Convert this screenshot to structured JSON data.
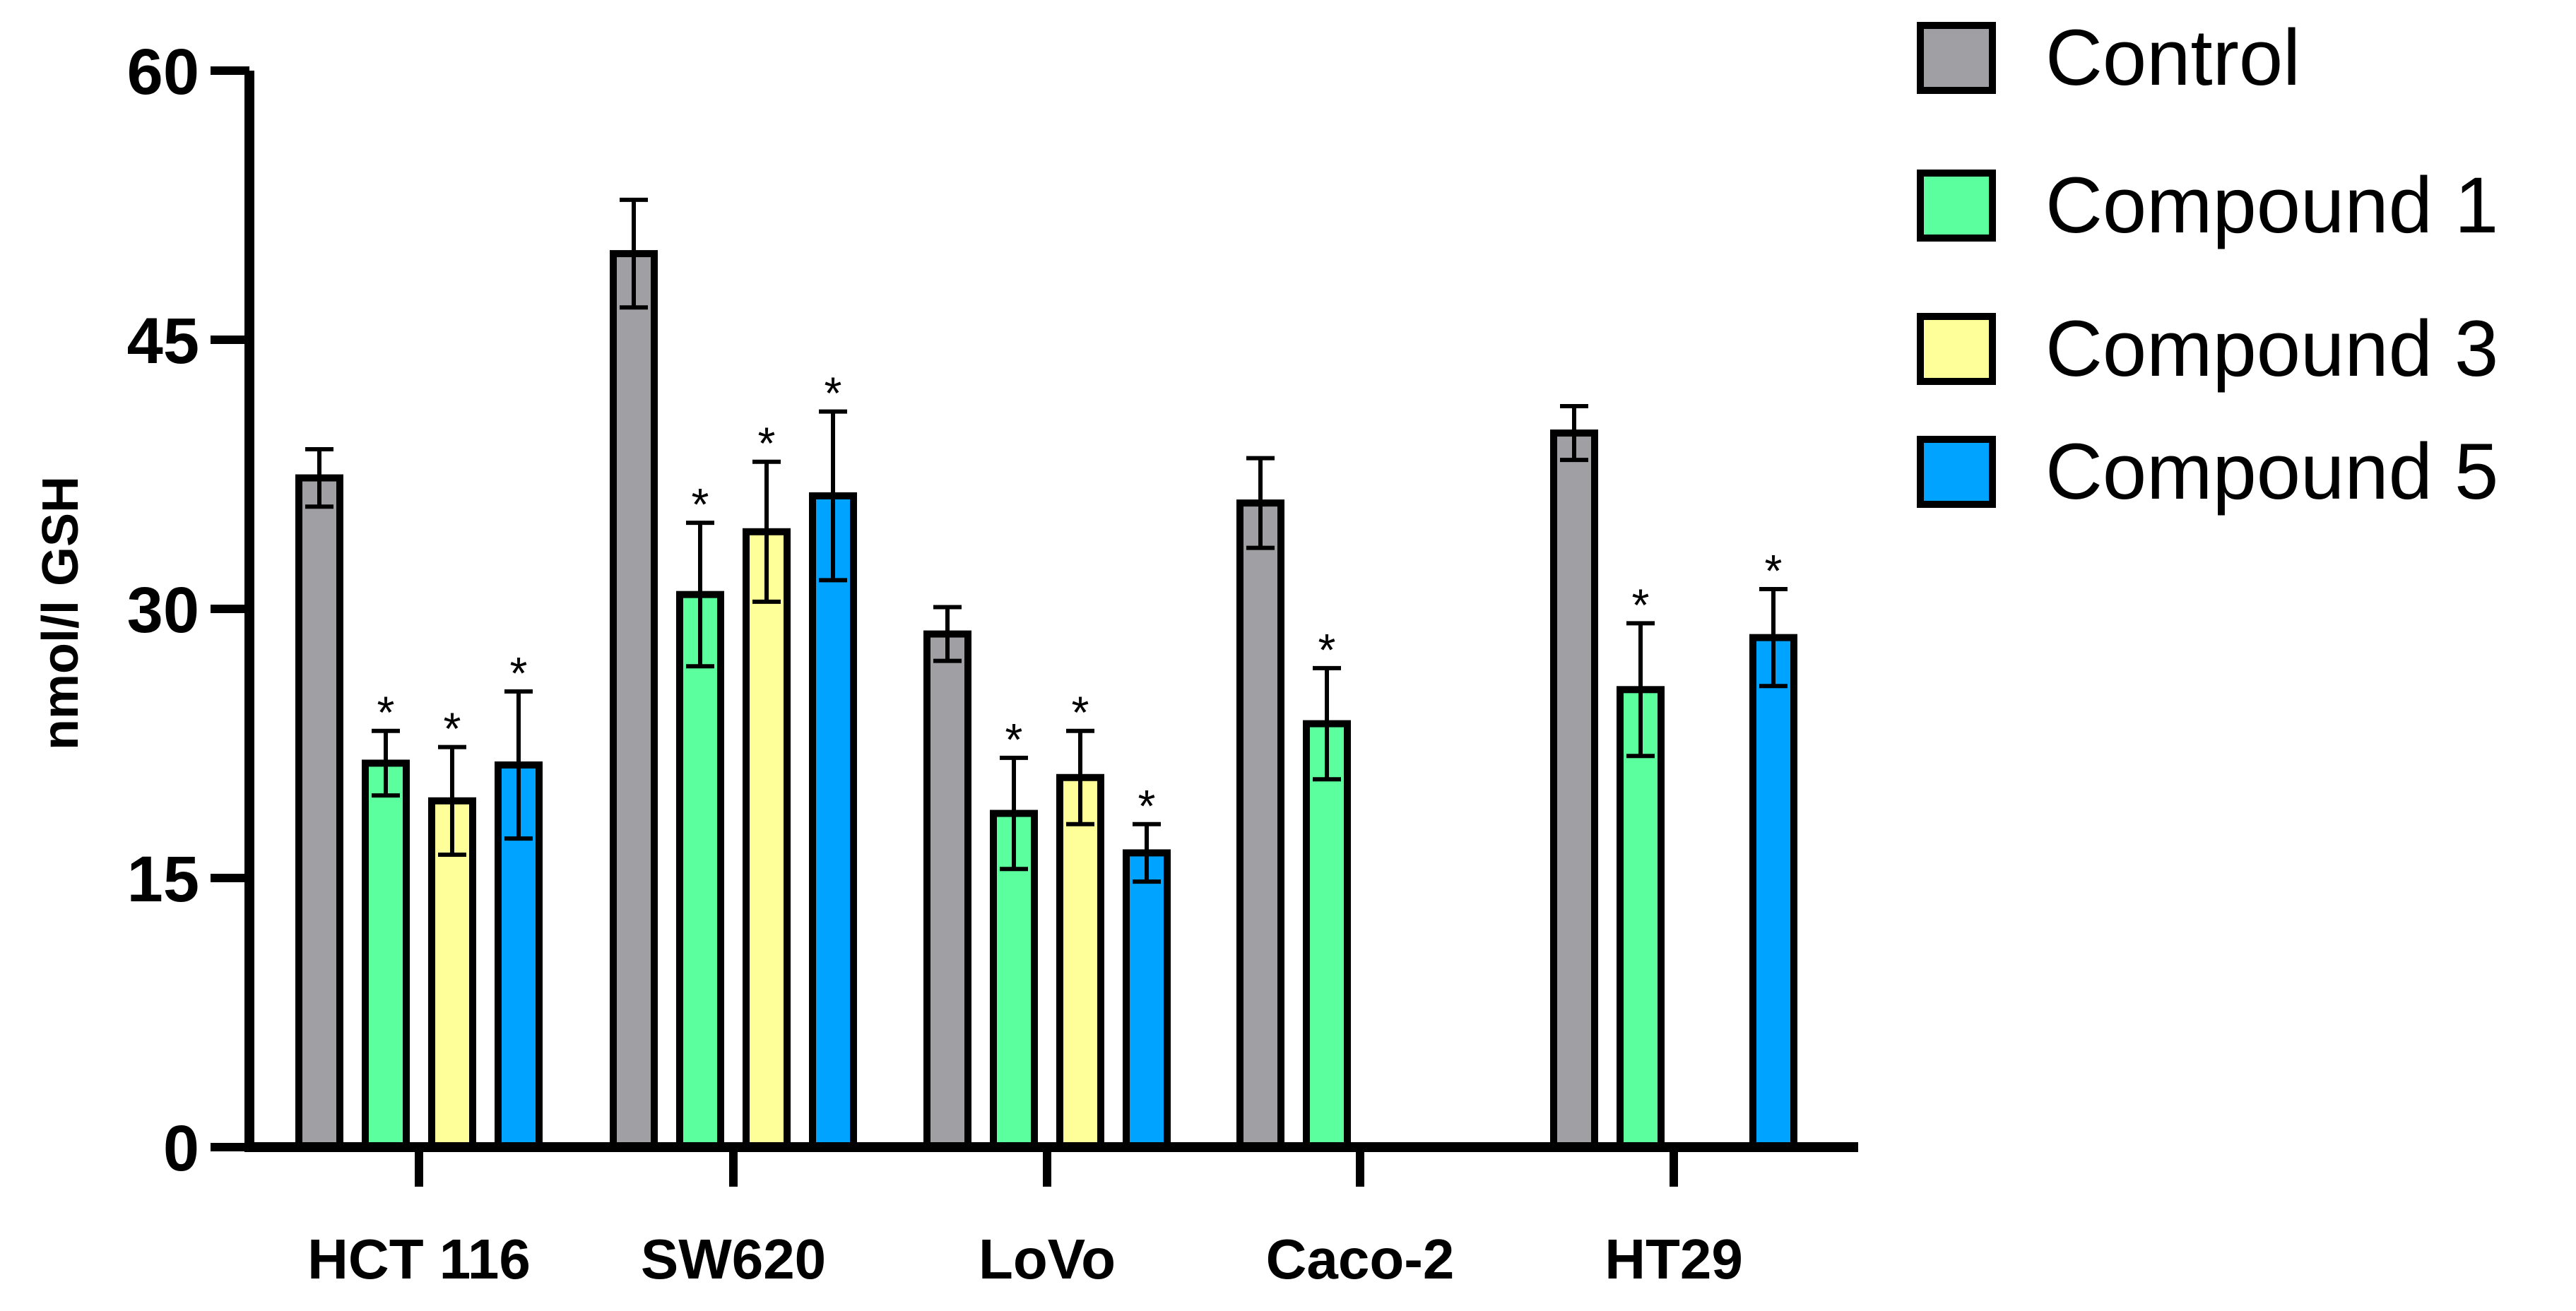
{
  "chart_data": {
    "type": "bar",
    "title": "",
    "xlabel": "",
    "ylabel": "nmol/l GSH",
    "ylim": [
      0,
      60
    ],
    "yticks": [
      "0",
      "15",
      "30",
      "45",
      "60"
    ],
    "categories": [
      "HCT 116",
      "SW620",
      "LoVo",
      "Caco-2",
      "HT29"
    ],
    "series": [
      {
        "name": "Control",
        "color": "#A0A0A4",
        "values": [
          37.3,
          49.8,
          28.6,
          35.9,
          39.8
        ],
        "errors": [
          1.6,
          3.0,
          1.5,
          2.5,
          1.5
        ],
        "significant": [
          false,
          false,
          false,
          false,
          false
        ]
      },
      {
        "name": "Compound 1",
        "color": "#5CFF9D",
        "values": [
          21.4,
          30.8,
          18.6,
          23.6,
          25.5
        ],
        "errors": [
          1.8,
          4.0,
          3.1,
          3.1,
          3.7
        ],
        "significant": [
          true,
          true,
          true,
          true,
          true
        ]
      },
      {
        "name": "Compound 3",
        "color": "#FFFF99",
        "values": [
          19.3,
          34.3,
          20.6,
          null,
          null
        ],
        "errors": [
          3.0,
          3.9,
          2.6,
          null,
          null
        ],
        "significant": [
          true,
          true,
          true,
          false,
          false
        ]
      },
      {
        "name": "Compound 5",
        "color": "#00A3FF",
        "values": [
          21.3,
          36.3,
          16.4,
          null,
          28.4
        ],
        "errors": [
          4.1,
          4.7,
          1.6,
          null,
          2.7
        ],
        "significant": [
          true,
          true,
          true,
          false,
          true
        ]
      }
    ],
    "significance_marker": "*",
    "legend_position": "top-right"
  }
}
